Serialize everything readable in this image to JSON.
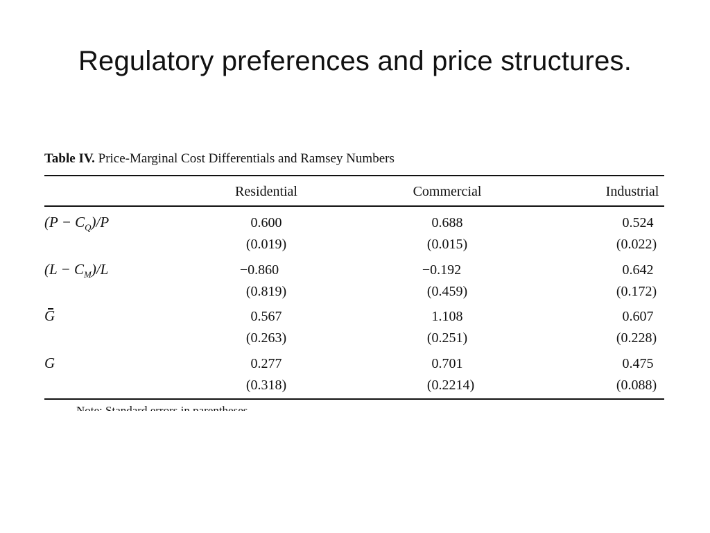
{
  "slide": {
    "title": "Regulatory preferences and  price structures."
  },
  "table": {
    "caption_label": "Table IV.",
    "caption_text": "Price-Marginal Cost Differentials and Ramsey Numbers",
    "columns": [
      "Residential",
      "Commercial",
      "Industrial"
    ],
    "rows": [
      {
        "label": "(P − CQ)/P",
        "values": [
          "0.600",
          "0.688",
          "0.524"
        ],
        "errors": [
          "(0.019)",
          "(0.015)",
          "(0.022)"
        ]
      },
      {
        "label": "(L − CM)/L",
        "values": [
          "−0.860",
          "−0.192",
          "0.642"
        ],
        "errors": [
          "(0.819)",
          "(0.459)",
          "(0.172)"
        ]
      },
      {
        "label": "Ḡ",
        "values": [
          "0.567",
          "1.108",
          "0.607"
        ],
        "errors": [
          "(0.263)",
          "(0.251)",
          "(0.228)"
        ]
      },
      {
        "label": "G",
        "values": [
          "0.277",
          "0.701",
          "0.475"
        ],
        "errors": [
          "(0.318)",
          "(0.2214)",
          "(0.088)"
        ]
      }
    ],
    "note": "Note: Standard errors in parentheses"
  }
}
